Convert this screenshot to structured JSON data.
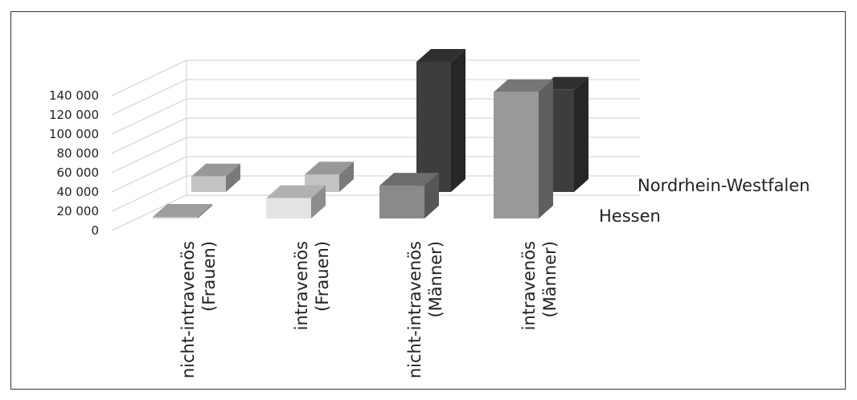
{
  "chart_data": {
    "type": "bar",
    "subtype": "3d-column",
    "title": "",
    "xlabel": "",
    "ylabel": "",
    "ylim": [
      0,
      140000
    ],
    "yticks": [
      "0",
      "20 000",
      "40 000",
      "60 000",
      "80 000",
      "100 000",
      "120 000",
      "140 000"
    ],
    "grid": true,
    "categories": [
      [
        "nicht-intravenös",
        "(Frauen)"
      ],
      [
        "intravenös",
        "(Frauen)"
      ],
      [
        "nicht-intravenös",
        "(Männer)"
      ],
      [
        "intravenös",
        "(Männer)"
      ]
    ],
    "series": [
      {
        "name": "Hessen",
        "values": [
          1500,
          21000,
          34000,
          131000
        ],
        "colors": [
          "#c9c9c9",
          "#e3e3e3",
          "#8a8a8a",
          "#999999"
        ]
      },
      {
        "name": "Nordrhein-Westfalen",
        "values": [
          16000,
          18000,
          135000,
          106000
        ],
        "colors": [
          "#c3c3c3",
          "#c3c3c3",
          "#3d3d3d",
          "#3d3d3d"
        ]
      }
    ]
  }
}
